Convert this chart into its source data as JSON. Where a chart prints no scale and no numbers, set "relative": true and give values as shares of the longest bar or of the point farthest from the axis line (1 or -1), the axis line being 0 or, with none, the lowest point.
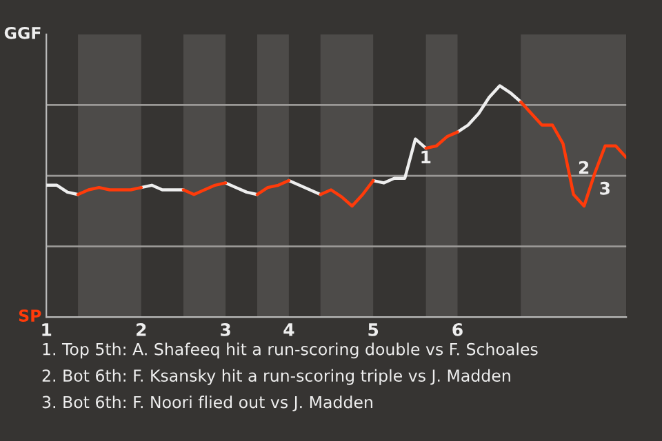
{
  "chart_data": {
    "type": "line",
    "relative": true,
    "categories": [
      "1",
      null,
      null,
      null,
      null,
      null,
      null,
      null,
      null,
      "2",
      null,
      null,
      null,
      null,
      null,
      null,
      null,
      "3",
      null,
      null,
      null,
      null,
      null,
      "4",
      null,
      null,
      null,
      null,
      null,
      null,
      null,
      "5",
      null,
      null,
      null,
      null,
      null,
      null,
      null,
      "6",
      null,
      null,
      null,
      null,
      null,
      null,
      null,
      null,
      null,
      null,
      null,
      null,
      null,
      null,
      null,
      null
    ],
    "series": [
      {
        "name": "GGF",
        "color": "#eeeeee",
        "values": [
          0.57,
          0.57,
          0.54,
          0.53,
          null,
          null,
          null,
          null,
          null,
          0.56,
          0.57,
          0.55,
          0.55,
          0.55,
          null,
          null,
          null,
          0.58,
          0.56,
          0.54,
          0.53,
          null,
          null,
          0.59,
          0.57,
          0.55,
          0.53,
          null,
          null,
          null,
          null,
          0.59,
          0.58,
          0.6,
          0.6,
          0.77,
          0.73,
          null,
          null,
          0.8,
          0.83,
          0.88,
          0.95,
          1,
          0.97,
          0.93,
          null,
          null,
          null,
          null,
          null,
          null,
          null,
          null,
          null,
          null
        ]
      },
      {
        "name": "SP",
        "color": "#ff3b0a",
        "values": [
          null,
          null,
          null,
          0.53,
          0.55,
          0.56,
          0.55,
          0.55,
          0.55,
          0.56,
          null,
          null,
          null,
          0.55,
          0.53,
          0.55,
          0.57,
          0.58,
          null,
          null,
          0.53,
          0.56,
          0.57,
          0.59,
          null,
          null,
          0.53,
          0.55,
          0.52,
          0.48,
          0.53,
          0.59,
          null,
          null,
          null,
          null,
          0.73,
          0.74,
          0.78,
          0.8,
          null,
          null,
          null,
          null,
          null,
          0.93,
          0.88,
          0.83,
          0.83,
          0.75,
          0.53,
          0.48,
          0.62,
          0.74,
          0.74,
          0.69
        ]
      }
    ],
    "grid": "y",
    "legend": false,
    "annotations": [
      "1",
      "2",
      "3",
      "1. Top 5th: A. Shafeeq hit a run-scoring double vs F. Schoales",
      "2. Bot 6th: F. Ksansky hit a run-scoring triple vs J. Madden",
      "3. Bot 6th: F. Noori flied out vs J. Madden"
    ]
  }
}
